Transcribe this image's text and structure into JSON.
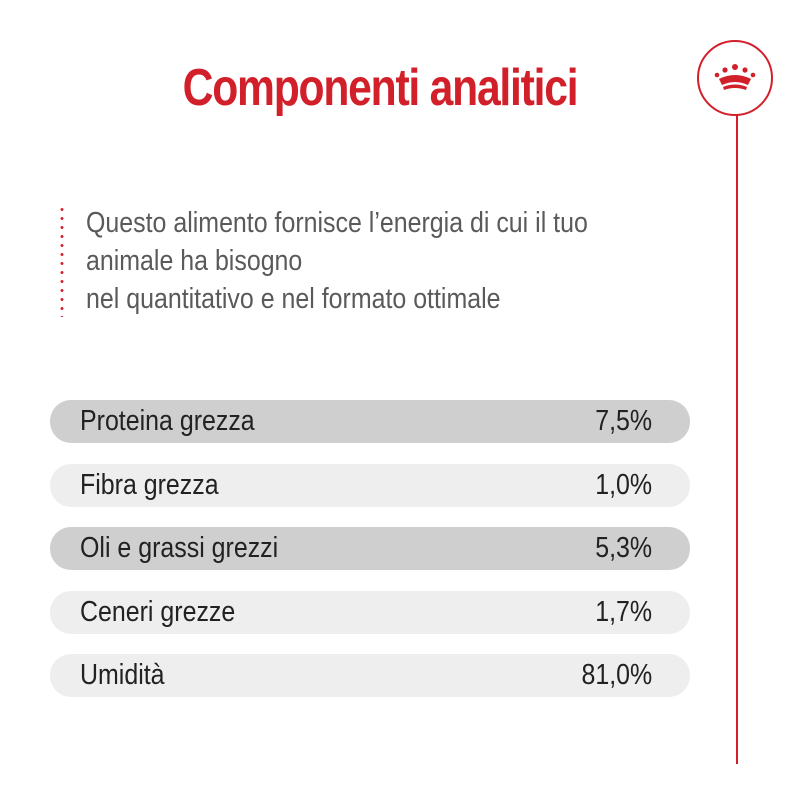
{
  "title": "Componenti analitici",
  "description": {
    "lines": [
      "Questo alimento fornisce l’energia di cui il tuo",
      "animale ha bisogno",
      "nel quantitativo e nel formato ottimale"
    ]
  },
  "components": [
    {
      "name": "Proteina grezza",
      "value": "7,5%"
    },
    {
      "name": "Fibra grezza",
      "value": "1,0%"
    },
    {
      "name": "Oli e grassi grezzi",
      "value": "5,3%"
    },
    {
      "name": "Ceneri grezze",
      "value": "1,7%"
    },
    {
      "name": "Umidità",
      "value": "81,0%"
    }
  ],
  "colors": {
    "accent": "#d2202a",
    "row_dark": "#cfcfd0",
    "row_light": "#eeeeee",
    "text": "#222222",
    "description_text": "#5a5a5a"
  },
  "logo": {
    "icon": "crown-icon"
  }
}
